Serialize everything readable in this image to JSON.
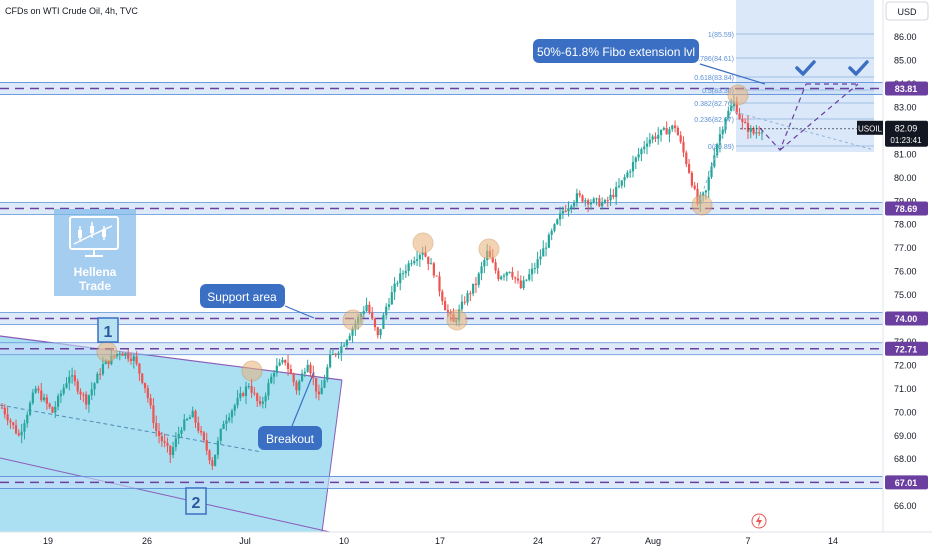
{
  "header": {
    "title": "CFDs on WTI Crude Oil, 4h, TVC"
  },
  "price_axis": {
    "currency": "USD",
    "ticks": [
      "86.00",
      "85.00",
      "84.00",
      "83.00",
      "82.00",
      "81.00",
      "80.00",
      "79.00",
      "78.00",
      "77.00",
      "76.00",
      "75.00",
      "74.00",
      "73.00",
      "72.00",
      "71.00",
      "70.00",
      "69.00",
      "68.00",
      "67.00",
      "66.00"
    ]
  },
  "time_axis": {
    "labels": [
      "19",
      "26",
      "Jul",
      "10",
      "17",
      "24",
      "27",
      "Aug",
      "7",
      "14"
    ]
  },
  "levels": [
    {
      "price": 83.81,
      "label": "83.81"
    },
    {
      "price": 78.69,
      "label": "78.69"
    },
    {
      "price": 74.0,
      "label": "74.00"
    },
    {
      "price": 72.71,
      "label": "72.71"
    },
    {
      "price": 67.01,
      "label": "67.01"
    }
  ],
  "current_price": {
    "symbol": "USOIL",
    "price": "82.09",
    "countdown": "01:23:41"
  },
  "fibo_levels": [
    {
      "ratio": 1,
      "label": "1(85.59)"
    },
    {
      "ratio": 0.786,
      "label": "0.786(84.61)"
    },
    {
      "ratio": 0.618,
      "label": "0.618(83.84)"
    },
    {
      "ratio": 0.5,
      "label": "0.5(83.30)"
    },
    {
      "ratio": 0.382,
      "label": "0.382(82.76)"
    },
    {
      "ratio": 0.236,
      "label": "0.236(82.07)"
    },
    {
      "ratio": 0,
      "label": "0(80.89)"
    }
  ],
  "annotations": {
    "fibo_callout": "50%-61.8% Fibo extension lvl",
    "support_callout": "Support area",
    "breakout_callout": "Breakout",
    "point_1": "1",
    "point_2": "2"
  },
  "logo": {
    "line1": "Hellena",
    "line2": "Trade"
  },
  "colors": {
    "candle_up": "#26a69a",
    "candle_down": "#ef5350",
    "level_line": "#6b3fa0",
    "zone_fill": "#c5dcf7",
    "callout": "#3b6fc4",
    "channel_fill": "#7fd3ef"
  },
  "chart_data": {
    "type": "candlestick",
    "title": "CFDs on WTI Crude Oil, 4h, TVC",
    "ylim": [
      65.6,
      86.8
    ],
    "y_ticks": [
      86,
      85,
      84,
      83,
      82,
      81,
      80,
      79,
      78,
      77,
      76,
      75,
      74,
      73,
      72,
      71,
      70,
      69,
      68,
      67,
      66
    ],
    "x_tick_labels": [
      "19",
      "26",
      "Jul",
      "10",
      "17",
      "24",
      "27",
      "Aug",
      "7",
      "14"
    ],
    "horizontal_levels": [
      83.81,
      78.69,
      74.0,
      72.71,
      67.01
    ],
    "last_price": 82.09,
    "close_path": [
      [
        0,
        70.2
      ],
      [
        6,
        69.0
      ],
      [
        12,
        71.0
      ],
      [
        18,
        70.0
      ],
      [
        24,
        71.6
      ],
      [
        30,
        70.5
      ],
      [
        36,
        72.0
      ],
      [
        42,
        72.6
      ],
      [
        47,
        72.3
      ],
      [
        51,
        71.1
      ],
      [
        55,
        69.2
      ],
      [
        60,
        68.2
      ],
      [
        64,
        69.4
      ],
      [
        68,
        69.9
      ],
      [
        72,
        68.7
      ],
      [
        75,
        67.8
      ],
      [
        79,
        69.6
      ],
      [
        83,
        70.3
      ],
      [
        88,
        71.2
      ],
      [
        92,
        70.2
      ],
      [
        97,
        71.8
      ],
      [
        101,
        72.2
      ],
      [
        105,
        71.0
      ],
      [
        109,
        72.2
      ],
      [
        113,
        70.6
      ],
      [
        117,
        72.3
      ],
      [
        121,
        72.8
      ],
      [
        125,
        73.6
      ],
      [
        130,
        74.6
      ],
      [
        134,
        73.2
      ],
      [
        137,
        74.5
      ],
      [
        141,
        75.6
      ],
      [
        146,
        76.5
      ],
      [
        150,
        76.9
      ],
      [
        154,
        76.0
      ],
      [
        158,
        74.5
      ],
      [
        161,
        73.8
      ],
      [
        165,
        74.8
      ],
      [
        169,
        75.5
      ],
      [
        173,
        76.8
      ],
      [
        177,
        75.8
      ],
      [
        181,
        76.1
      ],
      [
        185,
        75.3
      ],
      [
        190,
        76.2
      ],
      [
        195,
        77.4
      ],
      [
        200,
        78.6
      ],
      [
        205,
        79.2
      ],
      [
        210,
        79.0
      ],
      [
        215,
        78.9
      ],
      [
        220,
        79.6
      ],
      [
        225,
        80.6
      ],
      [
        230,
        81.6
      ],
      [
        235,
        81.9
      ],
      [
        240,
        82.2
      ],
      [
        245,
        80.3
      ],
      [
        248,
        78.9
      ],
      [
        251,
        79.4
      ],
      [
        254,
        81.1
      ],
      [
        258,
        82.6
      ],
      [
        261,
        83.2
      ],
      [
        264,
        82.3
      ],
      [
        268,
        81.9
      ],
      [
        271,
        82.1
      ]
    ],
    "fibo_extension": {
      "0": 80.89,
      "0.236": 82.07,
      "0.382": 82.76,
      "0.5": 83.3,
      "0.618": 83.84,
      "0.786": 84.61,
      "1": 85.59
    }
  }
}
